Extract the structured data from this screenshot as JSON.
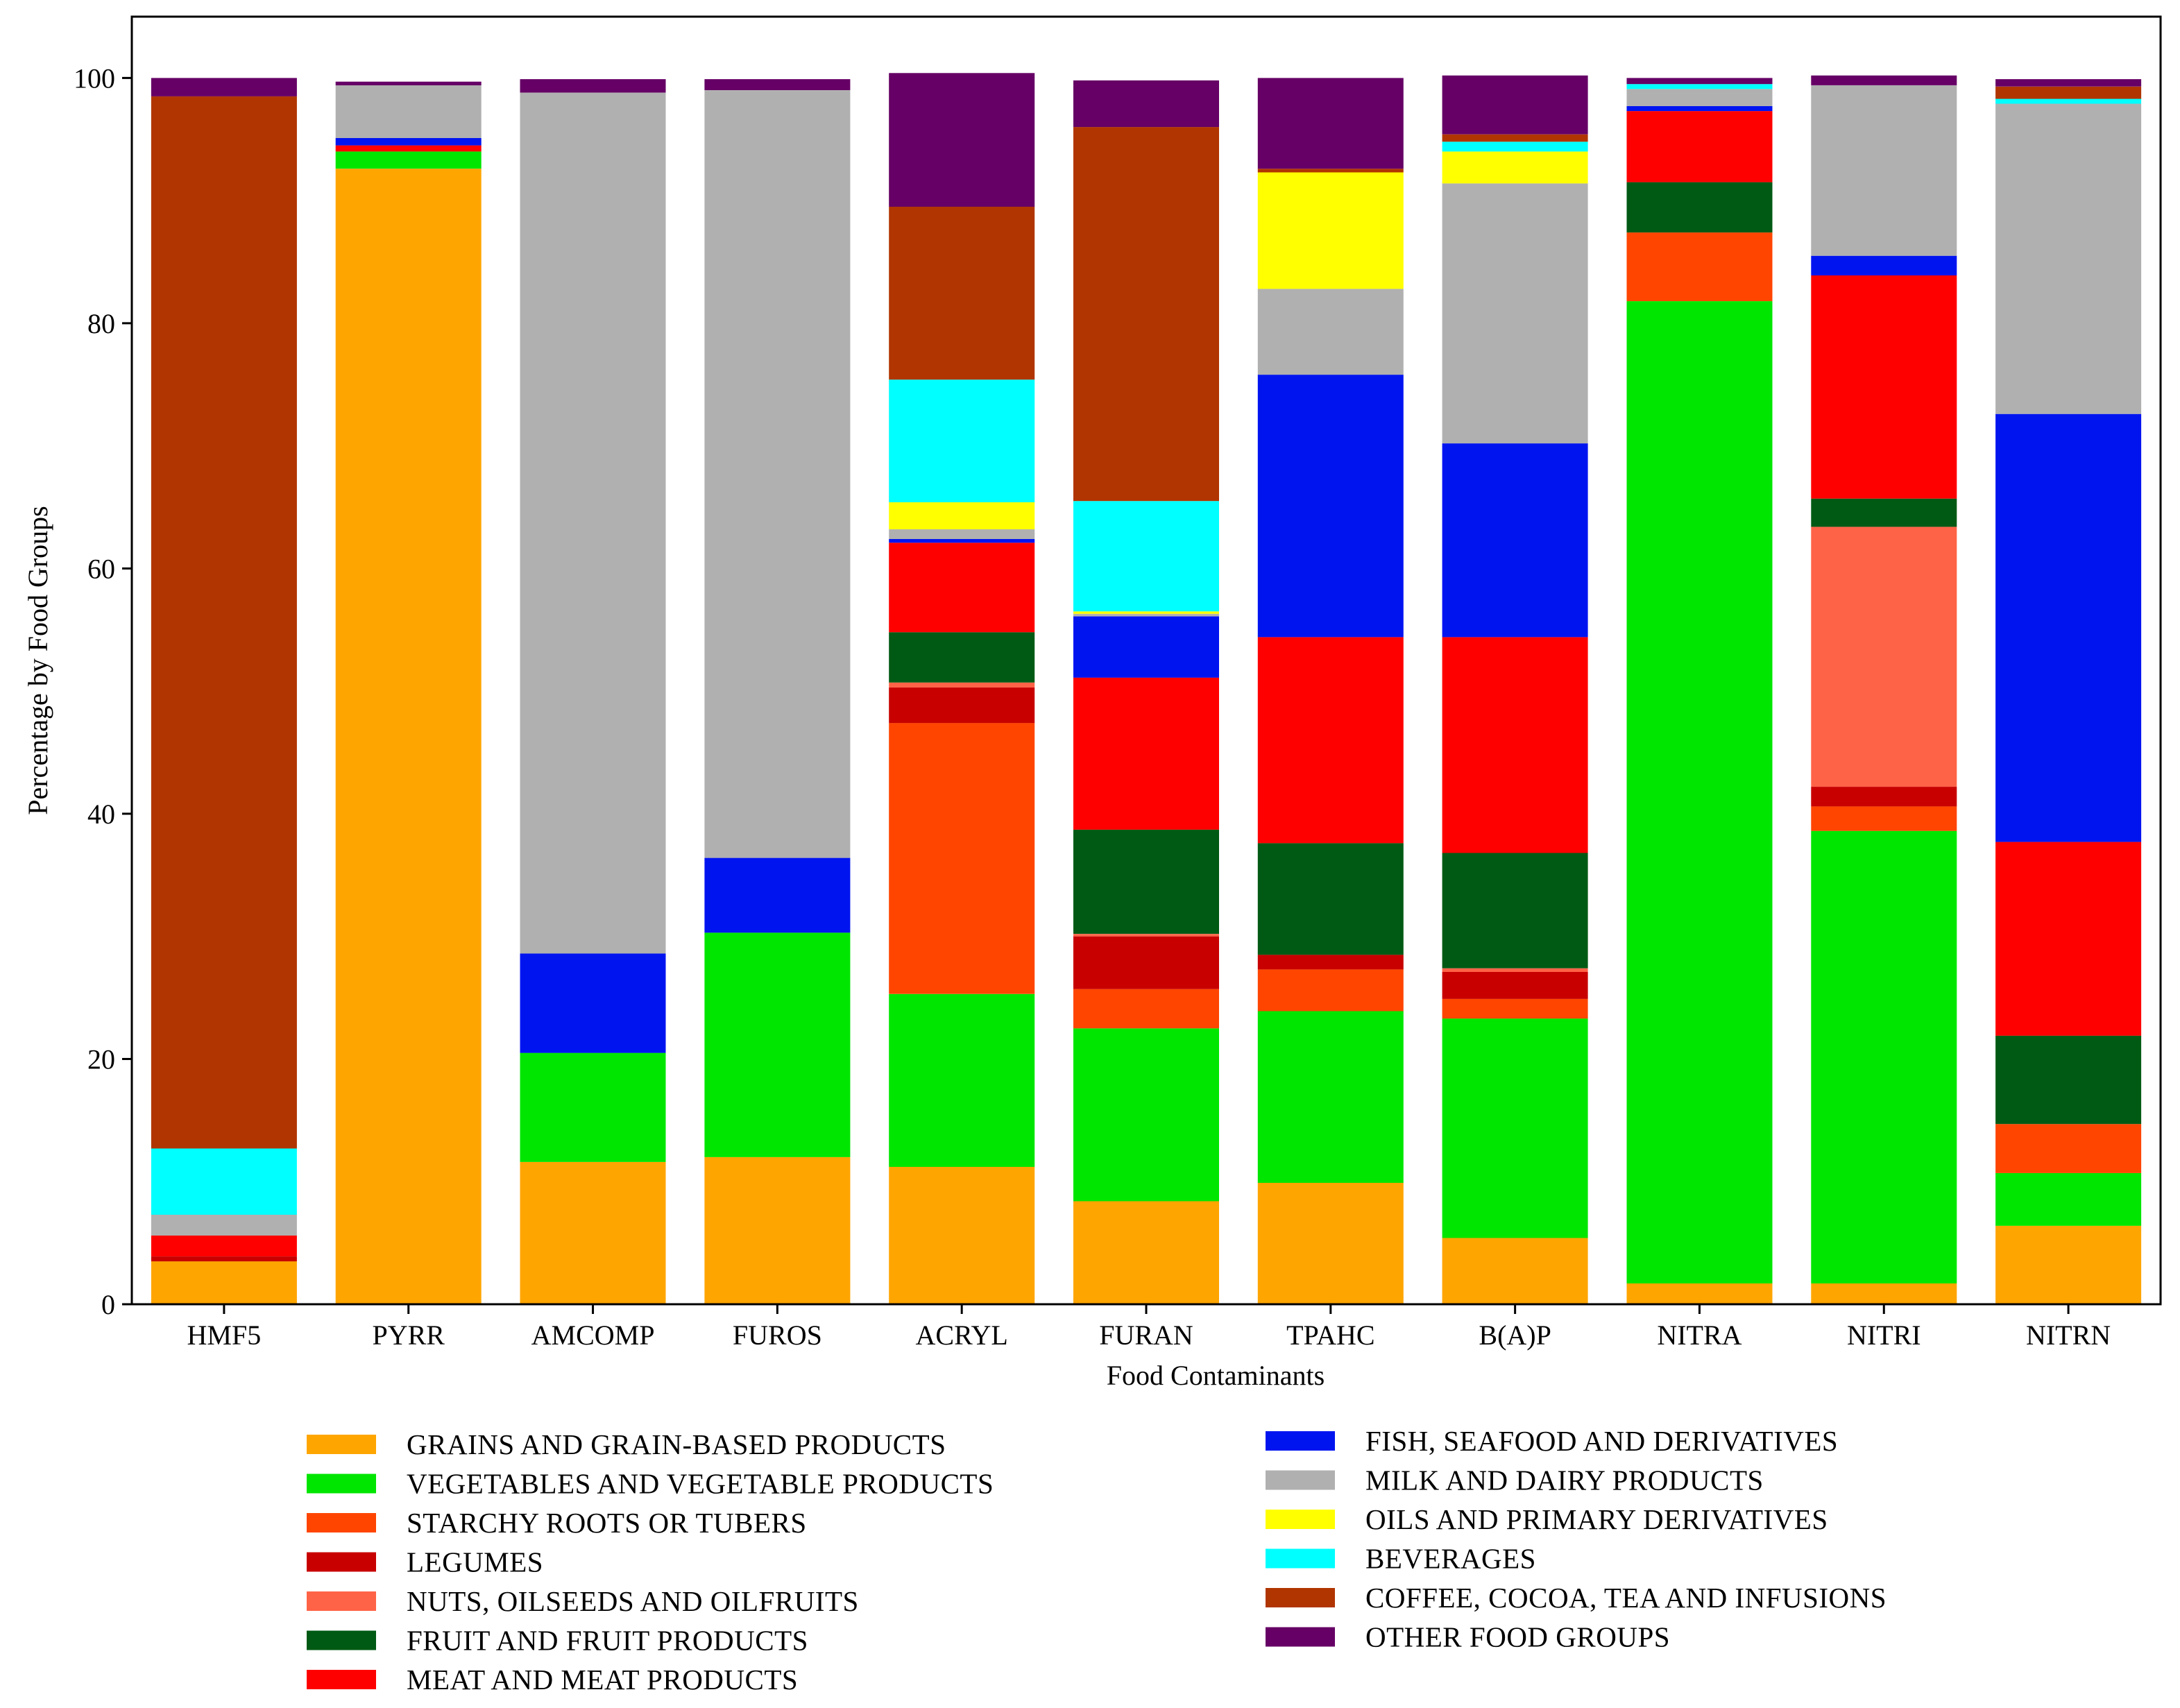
{
  "chart_data": {
    "type": "bar",
    "stacked": true,
    "title": "",
    "xlabel": "Food Contaminants",
    "ylabel": "Percentage by Food Groups",
    "ylim": [
      0,
      105
    ],
    "yticks": [
      0,
      20,
      40,
      60,
      80,
      100
    ],
    "grid": false,
    "legend_position": "bottom",
    "categories": [
      "HMF5",
      "PYRR",
      "AMCOMP",
      "FUROS",
      "ACRYL",
      "FURAN",
      "TPAHC",
      "B(A)P",
      "NITRA",
      "NITRI",
      "NITRN"
    ],
    "series": [
      {
        "name": "GRAINS AND GRAIN-BASED PRODUCTS",
        "color": "#FFA500",
        "values": [
          3.5,
          92.6,
          11.6,
          12.0,
          11.2,
          8.4,
          9.9,
          5.4,
          1.7,
          1.7,
          6.4
        ]
      },
      {
        "name": "VEGETABLES AND VEGETABLE PRODUCTS",
        "color": "#00E600",
        "values": [
          0.0,
          1.4,
          8.9,
          18.3,
          14.1,
          14.1,
          14.0,
          17.9,
          80.1,
          36.9,
          4.3
        ]
      },
      {
        "name": "STARCHY ROOTS OR TUBERS",
        "color": "#FF4500",
        "values": [
          0.0,
          0.0,
          0.0,
          0.0,
          22.1,
          3.2,
          3.4,
          1.6,
          5.6,
          2.0,
          4.0
        ]
      },
      {
        "name": "LEGUMES",
        "color": "#C80000",
        "values": [
          0.4,
          0.0,
          0.0,
          0.0,
          2.9,
          4.3,
          1.2,
          2.2,
          0.0,
          1.6,
          0.0
        ]
      },
      {
        "name": "NUTS, OILSEEDS AND OILFRUITS",
        "color": "#FF6347",
        "values": [
          0.0,
          0.0,
          0.0,
          0.0,
          0.4,
          0.2,
          0.0,
          0.3,
          0.0,
          21.2,
          0.0
        ]
      },
      {
        "name": "FRUIT AND FRUIT PRODUCTS",
        "color": "#005A14",
        "values": [
          0.0,
          0.0,
          0.0,
          0.0,
          4.1,
          8.5,
          9.1,
          9.4,
          4.1,
          2.3,
          7.2
        ]
      },
      {
        "name": "MEAT AND MEAT PRODUCTS",
        "color": "#FF0000",
        "values": [
          1.7,
          0.5,
          0.0,
          0.0,
          7.3,
          12.4,
          16.8,
          17.6,
          5.8,
          18.2,
          15.8
        ]
      },
      {
        "name": "FISH, SEAFOOD AND DERIVATIVES",
        "color": "#0014F0",
        "values": [
          0.0,
          0.6,
          8.1,
          6.1,
          0.3,
          5.0,
          21.4,
          15.8,
          0.4,
          1.6,
          34.9
        ]
      },
      {
        "name": "MILK AND DAIRY PRODUCTS",
        "color": "#B0B0B0",
        "values": [
          1.7,
          4.3,
          70.2,
          62.6,
          0.8,
          0.2,
          7.0,
          21.2,
          1.4,
          13.9,
          25.3
        ]
      },
      {
        "name": "OILS AND PRIMARY DERIVATIVES",
        "color": "#FFFF00",
        "values": [
          0.0,
          0.0,
          0.0,
          0.0,
          2.2,
          0.2,
          9.5,
          2.6,
          0.0,
          0.0,
          0.0
        ]
      },
      {
        "name": "BEVERAGES",
        "color": "#00FFFF",
        "values": [
          5.4,
          0.0,
          0.0,
          0.0,
          10.0,
          9.0,
          0.0,
          0.8,
          0.4,
          0.0,
          0.4
        ]
      },
      {
        "name": "COFFEE, COCOA, TEA AND INFUSIONS",
        "color": "#B03500",
        "values": [
          85.8,
          0.0,
          0.0,
          0.0,
          14.1,
          30.5,
          0.3,
          0.6,
          0.0,
          0.0,
          1.0
        ]
      },
      {
        "name": "OTHER FOOD GROUPS",
        "color": "#660066",
        "values": [
          1.5,
          0.3,
          1.1,
          0.9,
          10.9,
          3.8,
          7.4,
          4.8,
          0.5,
          0.8,
          0.6
        ]
      }
    ]
  }
}
